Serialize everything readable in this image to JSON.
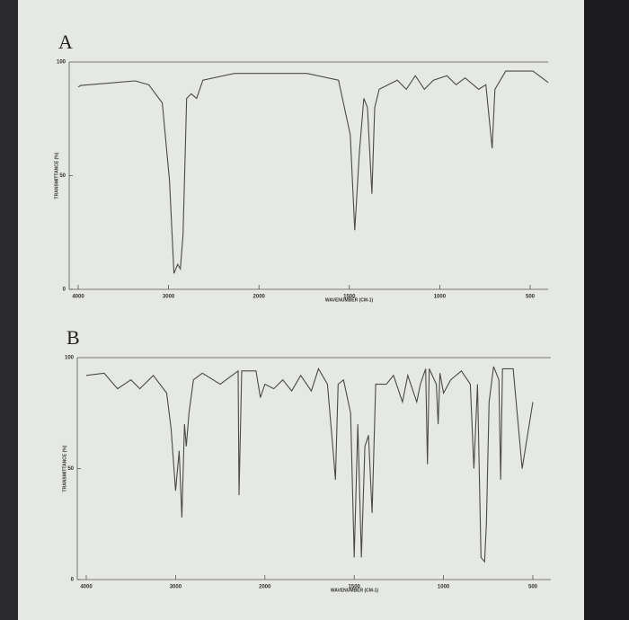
{
  "chart_data": [
    {
      "type": "line",
      "title": "A",
      "x_label": "WAVENUMBER (CM-1)",
      "y_label": "TRANSMITTANCE (%)",
      "xlim": [
        4000,
        400
      ],
      "xticks": [
        4000,
        3000,
        2000,
        1500,
        1000,
        500
      ],
      "ylim": [
        0,
        100
      ],
      "yticks": [
        0,
        50,
        100
      ],
      "color": "#4a4a4a",
      "x": [
        4000,
        3970,
        3370,
        3220,
        3070,
        2990,
        2940,
        2900,
        2870,
        2840,
        2800,
        2750,
        2690,
        2620,
        2270,
        2000,
        1735,
        1560,
        1495,
        1470,
        1445,
        1420,
        1400,
        1375,
        1360,
        1335,
        1285,
        1235,
        1185,
        1135,
        1085,
        1035,
        960,
        910,
        860,
        785,
        745,
        710,
        695,
        635,
        485,
        400
      ],
      "values": [
        89,
        89.7,
        91.7,
        90,
        82,
        48,
        7,
        11,
        9,
        24,
        84,
        86,
        84,
        92,
        95,
        95,
        95,
        92,
        68,
        26,
        60,
        84,
        80,
        42,
        80,
        88,
        90,
        92,
        88,
        94,
        88,
        92,
        94,
        90,
        93,
        88,
        90,
        62,
        88,
        96,
        96,
        91
      ]
    },
    {
      "type": "line",
      "title": "B",
      "x_label": "WAVENUMBER (CM-1)",
      "y_label": "TRANSMITTANCE (%)",
      "xlim": [
        4000,
        400
      ],
      "xticks": [
        4000,
        3000,
        2000,
        1500,
        1000,
        500
      ],
      "ylim": [
        0,
        100
      ],
      "yticks": [
        0,
        50,
        100
      ],
      "color": "#4a4a4a",
      "x": [
        4000,
        3800,
        3650,
        3500,
        3400,
        3250,
        3100,
        3050,
        3000,
        2960,
        2930,
        2900,
        2880,
        2850,
        2800,
        2700,
        2500,
        2300,
        2290,
        2260,
        2100,
        2050,
        2000,
        1950,
        1900,
        1850,
        1800,
        1740,
        1700,
        1650,
        1620,
        1605,
        1590,
        1560,
        1520,
        1500,
        1480,
        1460,
        1440,
        1420,
        1400,
        1380,
        1320,
        1280,
        1230,
        1200,
        1150,
        1130,
        1100,
        1090,
        1080,
        1040,
        1030,
        1020,
        1000,
        960,
        900,
        850,
        830,
        810,
        790,
        770,
        760,
        745,
        720,
        690,
        680,
        670,
        610,
        560,
        500
      ],
      "values": [
        92,
        93,
        86,
        90,
        86,
        92,
        84,
        68,
        40,
        58,
        28,
        70,
        60,
        75,
        90,
        93,
        88,
        94,
        38,
        94,
        94,
        82,
        88,
        86,
        90,
        85,
        92,
        85,
        95,
        88,
        60,
        45,
        88,
        90,
        75,
        10,
        70,
        10,
        60,
        65,
        30,
        88,
        88,
        92,
        80,
        92,
        80,
        88,
        95,
        52,
        95,
        88,
        70,
        93,
        84,
        90,
        94,
        88,
        50,
        88,
        10,
        8,
        25,
        80,
        96,
        90,
        45,
        95,
        95,
        50,
        80
      ]
    }
  ]
}
